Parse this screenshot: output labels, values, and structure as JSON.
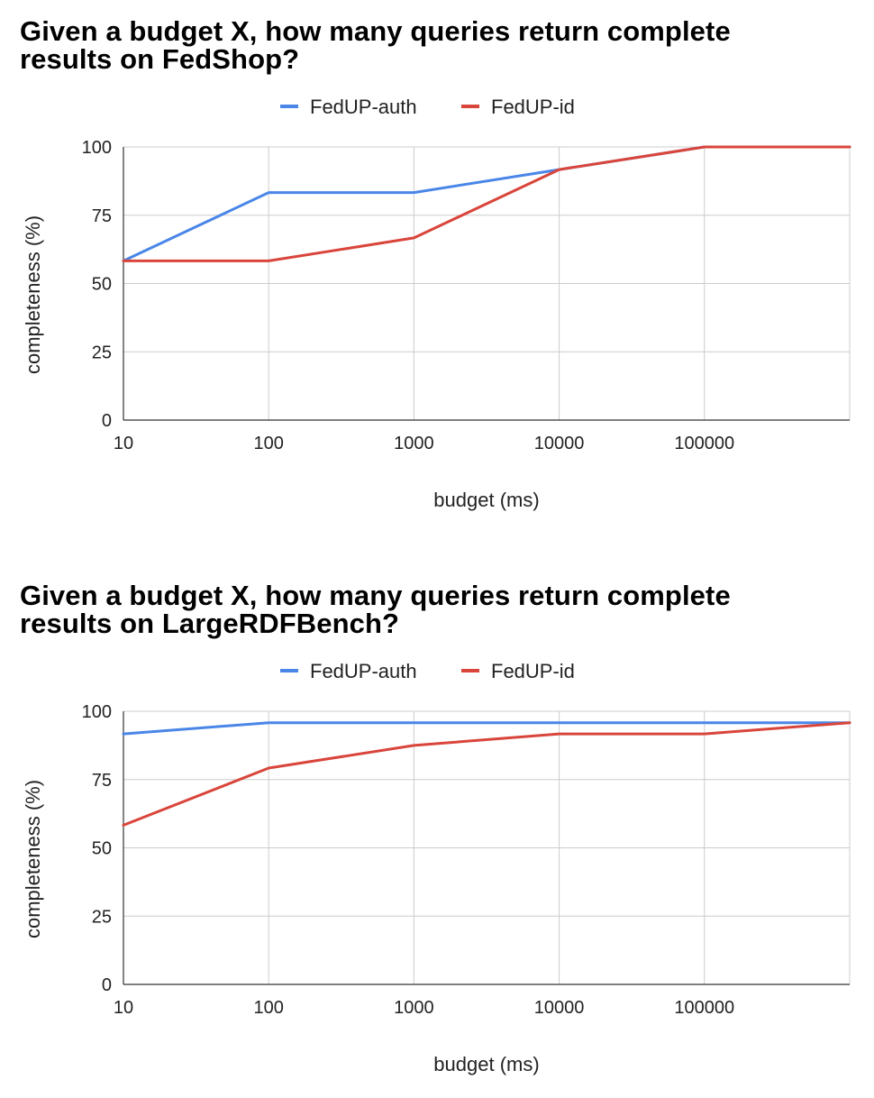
{
  "colors": {
    "auth": "#4a86e8",
    "id": "#d9453b",
    "grid": "#cccccc",
    "axis": "#333333"
  },
  "chart_data": [
    {
      "type": "line",
      "title_lines": [
        "Given a budget X, how many queries return complete",
        "results on FedShop?"
      ],
      "xlabel": "budget (ms)",
      "ylabel": "completeness (%)",
      "x_scale": "log",
      "x_ticks": [
        "10",
        "100",
        "1000",
        "10000",
        "100000"
      ],
      "xlim": [
        10,
        1000000
      ],
      "ylim": [
        0,
        100
      ],
      "y_ticks": [
        "0",
        "25",
        "50",
        "75",
        "100"
      ],
      "grid": true,
      "legend_position": "top",
      "x": [
        10,
        100,
        1000,
        10000,
        100000,
        1000000
      ],
      "series": [
        {
          "name": "FedUP-auth",
          "color": "#4a86e8",
          "values": [
            58.3,
            83.3,
            83.3,
            91.7,
            100,
            100
          ]
        },
        {
          "name": "FedUP-id",
          "color": "#d9453b",
          "values": [
            58.3,
            58.3,
            66.7,
            91.7,
            100,
            100
          ]
        }
      ]
    },
    {
      "type": "line",
      "title_lines": [
        "Given a budget X, how many queries return complete",
        "results on LargeRDFBench?"
      ],
      "xlabel": "budget (ms)",
      "ylabel": "completeness (%)",
      "x_scale": "log",
      "x_ticks": [
        "10",
        "100",
        "1000",
        "10000",
        "100000"
      ],
      "xlim": [
        10,
        1000000
      ],
      "ylim": [
        0,
        100
      ],
      "y_ticks": [
        "0",
        "25",
        "50",
        "75",
        "100"
      ],
      "grid": true,
      "legend_position": "top",
      "x": [
        10,
        100,
        1000,
        10000,
        100000,
        1000000
      ],
      "series": [
        {
          "name": "FedUP-auth",
          "color": "#4a86e8",
          "values": [
            91.7,
            95.8,
            95.8,
            95.8,
            95.8,
            95.8
          ]
        },
        {
          "name": "FedUP-id",
          "color": "#d9453b",
          "values": [
            58.3,
            79.2,
            87.5,
            91.7,
            91.7,
            95.8
          ]
        }
      ]
    }
  ]
}
